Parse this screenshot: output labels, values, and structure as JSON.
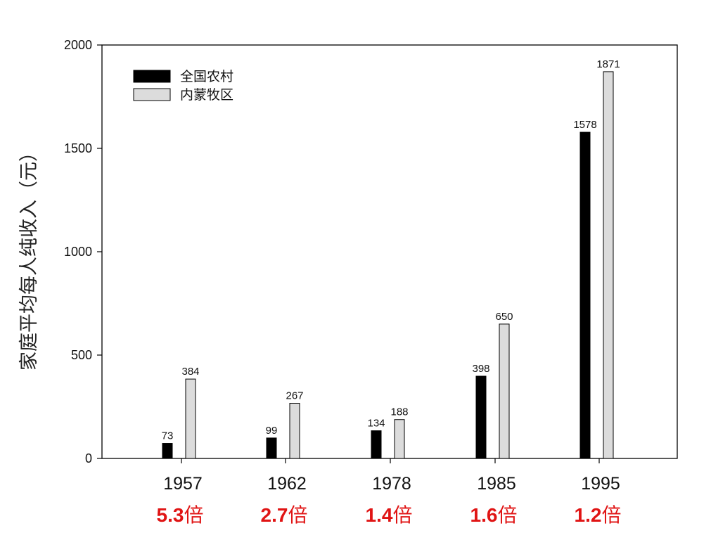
{
  "colors": {
    "series_rural": "#000000",
    "series_pastoral": "#dcdcdc",
    "ratio_text": "#e01414"
  },
  "chart_data": {
    "type": "bar",
    "ylabel": "家庭平均每人纯收入（元）",
    "ylim": [
      0,
      2000
    ],
    "yticks": [
      0,
      500,
      1000,
      1500,
      2000
    ],
    "categories": [
      "1957",
      "1962",
      "1978",
      "1985",
      "1995"
    ],
    "series": [
      {
        "name": "全国农村",
        "values": [
          73,
          99,
          134,
          398,
          1578
        ]
      },
      {
        "name": "内蒙牧区",
        "values": [
          384,
          267,
          188,
          650,
          1871
        ]
      }
    ],
    "ratios": [
      {
        "value": "5.3",
        "unit": "倍"
      },
      {
        "value": "2.7",
        "unit": "倍"
      },
      {
        "value": "1.4",
        "unit": "倍"
      },
      {
        "value": "1.6",
        "unit": "倍"
      },
      {
        "value": "1.2",
        "unit": "倍"
      }
    ],
    "legend_position": "top-left",
    "grid": false
  }
}
